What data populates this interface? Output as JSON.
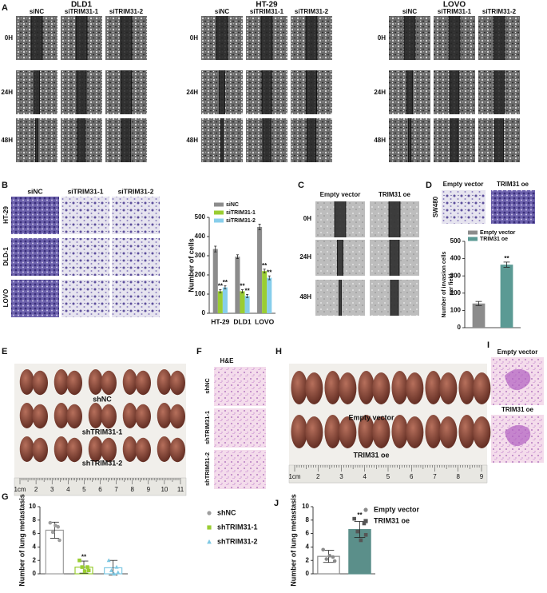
{
  "figure": {
    "A": {
      "label": "A",
      "groups": [
        {
          "name": "DLD1",
          "columns": [
            "siNC",
            "siTRIM31-1",
            "siTRIM31-2"
          ],
          "rows": [
            "0H",
            "24H",
            "48H"
          ]
        },
        {
          "name": "HT-29",
          "columns": [
            "siNC",
            "siTRIM31-1",
            "siTRIM31-2"
          ],
          "rows": [
            "0H",
            "24H",
            "48H"
          ]
        },
        {
          "name": "LOVO",
          "columns": [
            "siNC",
            "siTRIM31-1",
            "siTRIM31-2"
          ],
          "rows": [
            "0H",
            "24H",
            "48H"
          ]
        }
      ]
    },
    "B": {
      "label": "B",
      "columns": [
        "siNC",
        "siTRIM31-1",
        "siTRIM31-2"
      ],
      "rows": [
        "HT-29",
        "DLD-1",
        "LOVO"
      ]
    },
    "C": {
      "label": "C",
      "columns": [
        "Empty vector",
        "TRIM31 oe"
      ],
      "rows": [
        "0H",
        "24H",
        "48H"
      ]
    },
    "D": {
      "label": "D",
      "columns": [
        "Empty vector",
        "TRIM31 oe"
      ],
      "row": "SW480"
    },
    "E": {
      "label": "E",
      "groups": [
        "shNC",
        "shTRIM31-1",
        "shTRIM31-2"
      ],
      "ruler": [
        "1cm",
        "2",
        "3",
        "4",
        "5",
        "6",
        "7",
        "8",
        "9",
        "10",
        "11"
      ]
    },
    "F": {
      "label": "F",
      "stain": "H&E",
      "rows": [
        "shNC",
        "shTRIM31-1",
        "shTRIM31-2"
      ]
    },
    "G": {
      "label": "G"
    },
    "H": {
      "label": "H",
      "groups": [
        "Empty vector",
        "TRIM31 oe"
      ],
      "ruler": [
        "1cm",
        "2",
        "3",
        "4",
        "5",
        "6",
        "7",
        "8",
        "9"
      ]
    },
    "I": {
      "label": "I",
      "rows": [
        "Empty vector",
        "TRIM31 oe"
      ]
    },
    "J": {
      "label": "J"
    }
  },
  "chart_data": [
    {
      "type": "bar",
      "categories": [
        "HT-29",
        "DLD1",
        "LOVO"
      ],
      "ylabel": "Number of cells",
      "ylim": [
        0,
        500
      ],
      "yticks": [
        0,
        100,
        200,
        300,
        400,
        500
      ],
      "series": [
        {
          "name": "siNC",
          "color": "#8c8c8c",
          "values": [
            335,
            295,
            450
          ],
          "errors": [
            15,
            10,
            15
          ]
        },
        {
          "name": "siTRIM31-1",
          "color": "#9acd32",
          "values": [
            115,
            115,
            220
          ],
          "errors": [
            8,
            8,
            10
          ],
          "significance": [
            "**",
            "**",
            "**"
          ]
        },
        {
          "name": "siTRIM31-2",
          "color": "#87ceeb",
          "values": [
            135,
            90,
            185
          ],
          "errors": [
            8,
            8,
            10
          ],
          "significance": [
            "**",
            "**",
            "**"
          ]
        }
      ]
    },
    {
      "type": "bar",
      "ylabel_lines": [
        "Number of invasion cells",
        "per field"
      ],
      "ylim": [
        0,
        500
      ],
      "yticks": [
        0,
        100,
        200,
        300,
        400,
        500
      ],
      "series": [
        {
          "name": "Empty vector",
          "color": "#8c8c8c",
          "values": [
            140
          ],
          "errors": [
            12
          ]
        },
        {
          "name": "TRIM31 oe",
          "color": "#5b9a94",
          "values": [
            365
          ],
          "errors": [
            15
          ],
          "significance": [
            "**"
          ]
        }
      ]
    },
    {
      "type": "bar",
      "ylabel": "Number of lung metastasis",
      "ylim": [
        0,
        10
      ],
      "yticks": [
        0,
        2,
        4,
        6,
        8,
        10
      ],
      "series": [
        {
          "name": "shNC",
          "color": "#9e9e9e",
          "fill": "#ffffff",
          "marker": "circle",
          "values": [
            6.5
          ],
          "errors": [
            1.2
          ],
          "points": [
            7.6,
            7.0,
            6.2,
            5.0,
            7.2
          ]
        },
        {
          "name": "shTRIM31-1",
          "color": "#9acd32",
          "fill": "#ffffff",
          "marker": "square",
          "values": [
            1.0
          ],
          "errors": [
            0.9
          ],
          "points": [
            2.0,
            1.0,
            1.0,
            0.5,
            0.4
          ],
          "significance": [
            "**"
          ]
        },
        {
          "name": "shTRIM31-2",
          "color": "#7ec8e3",
          "fill": "#ffffff",
          "marker": "triangle",
          "values": [
            0.9
          ],
          "errors": [
            1.1
          ],
          "points": [
            2.0,
            1.0,
            0.5,
            0.2,
            0
          ]
        }
      ]
    },
    {
      "type": "bar",
      "ylabel": "Number of lung metastasis",
      "ylim": [
        0,
        10
      ],
      "yticks": [
        0,
        2,
        4,
        6,
        8,
        10
      ],
      "series": [
        {
          "name": "Empty vector",
          "color": "#8a8a8a",
          "fill": "#ffffff",
          "marker": "circle",
          "values": [
            2.6
          ],
          "errors": [
            0.9
          ],
          "points": [
            3.6,
            2.5,
            2.2,
            1.9,
            2.7
          ]
        },
        {
          "name": "TRIM31 oe",
          "color": "#5b8f8a",
          "fill": "#5b8f8a",
          "point_color": "#555555",
          "marker": "square",
          "values": [
            6.6
          ],
          "errors": [
            1.2
          ],
          "points": [
            8.2,
            7.5,
            6.3,
            5.8,
            5.0
          ],
          "significance": [
            "**"
          ]
        }
      ]
    }
  ]
}
